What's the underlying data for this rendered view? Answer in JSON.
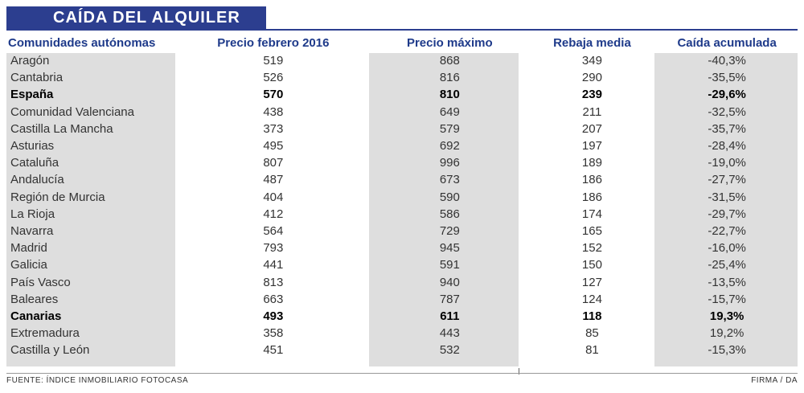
{
  "title": "CAÍDA DEL ALQUILER",
  "chart_data": {
    "type": "table",
    "columns": [
      "Comunidades autónomas",
      "Precio febrero 2016",
      "Precio máximo",
      "Rebaja media",
      "Caída acumulada"
    ],
    "rows": [
      [
        "Aragón",
        "519",
        "868",
        "349",
        "-40,3%"
      ],
      [
        "Cantabria",
        "526",
        "816",
        "290",
        "-35,5%"
      ],
      [
        "España",
        "570",
        "810",
        "239",
        "-29,6%"
      ],
      [
        "Comunidad Valenciana",
        "438",
        "649",
        "211",
        "-32,5%"
      ],
      [
        "Castilla La Mancha",
        "373",
        "579",
        "207",
        "-35,7%"
      ],
      [
        "Asturias",
        "495",
        "692",
        "197",
        "-28,4%"
      ],
      [
        "Cataluña",
        "807",
        "996",
        "189",
        "-19,0%"
      ],
      [
        "Andalucía",
        "487",
        "673",
        "186",
        "-27,7%"
      ],
      [
        "Región de Murcia",
        "404",
        "590",
        "186",
        "-31,5%"
      ],
      [
        "La Rioja",
        "412",
        "586",
        "174",
        "-29,7%"
      ],
      [
        "Navarra",
        "564",
        "729",
        "165",
        "-22,7%"
      ],
      [
        "Madrid",
        "793",
        "945",
        "152",
        "-16,0%"
      ],
      [
        "Galicia",
        "441",
        "591",
        "150",
        "-25,4%"
      ],
      [
        "País Vasco",
        "813",
        "940",
        "127",
        "-13,5%"
      ],
      [
        "Baleares",
        "663",
        "787",
        "124",
        "-15,7%"
      ],
      [
        "Canarias",
        "493",
        "611",
        "118",
        "19,3%"
      ],
      [
        "Extremadura",
        "358",
        "443",
        "85",
        "19,2%"
      ],
      [
        "Castilla y León",
        "451",
        "532",
        "81",
        "-15,3%"
      ]
    ],
    "highlighted_rows": [
      "España",
      "Canarias"
    ]
  },
  "source": "FUENTE: ÍNDICE INMOBILIARIO FOTOCASA",
  "credit": "FIRMA / DA",
  "colors": {
    "title_bg": "#2c3e8f",
    "header_text": "#1e3a8a",
    "column_shade": "#dedede"
  }
}
